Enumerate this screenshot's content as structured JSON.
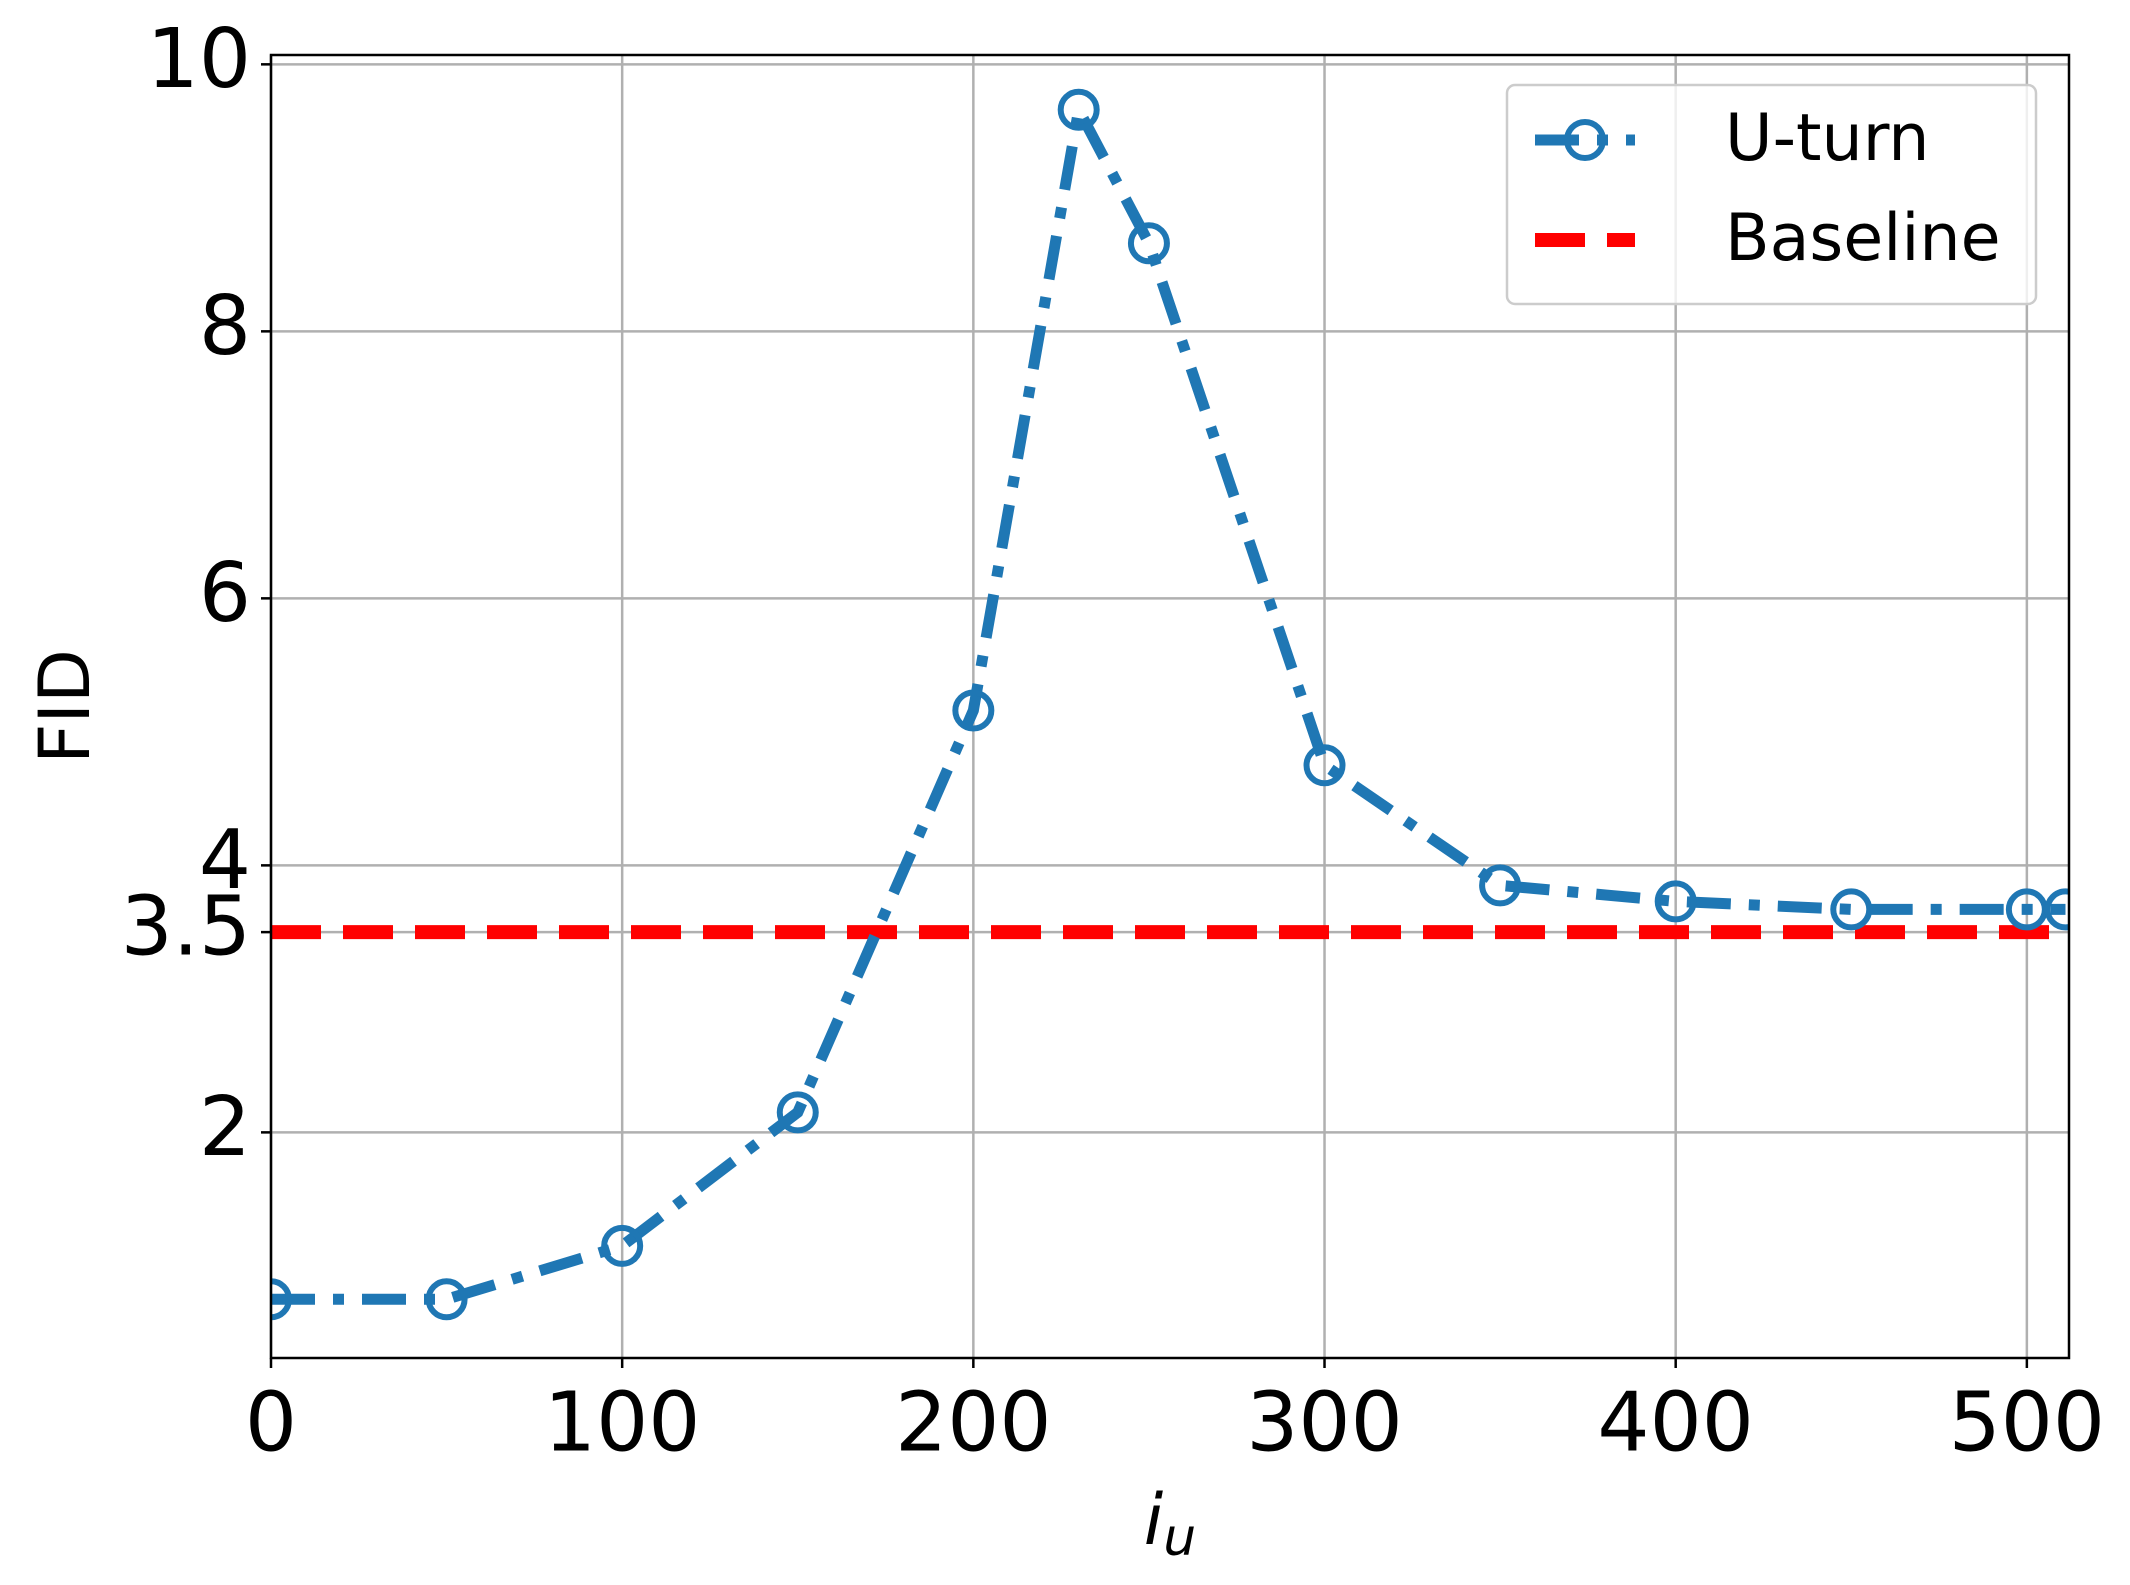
{
  "chart_data": {
    "type": "line",
    "x_label": {
      "base": "i",
      "sub": "u"
    },
    "y_label": "FID",
    "x": [
      0,
      50,
      100,
      150,
      200,
      230,
      250,
      300,
      350,
      400,
      450,
      500,
      511
    ],
    "series": [
      {
        "name": "U-turn",
        "color": "#1f77b4",
        "values": [
          0.75,
          0.75,
          1.15,
          2.15,
          5.16,
          9.66,
          8.66,
          4.75,
          3.85,
          3.73,
          3.67,
          3.67,
          3.67
        ]
      }
    ],
    "baseline": {
      "name": "Baseline",
      "color": "#ff0000",
      "value": 3.5
    },
    "xlim": [
      0,
      512
    ],
    "ylim": [
      0.31,
      10.07
    ],
    "xticks": [
      0,
      100,
      200,
      300,
      400,
      500
    ],
    "yticks": [
      2,
      3.5,
      4,
      6,
      8,
      10
    ],
    "grid": true,
    "legend": "upper right"
  }
}
